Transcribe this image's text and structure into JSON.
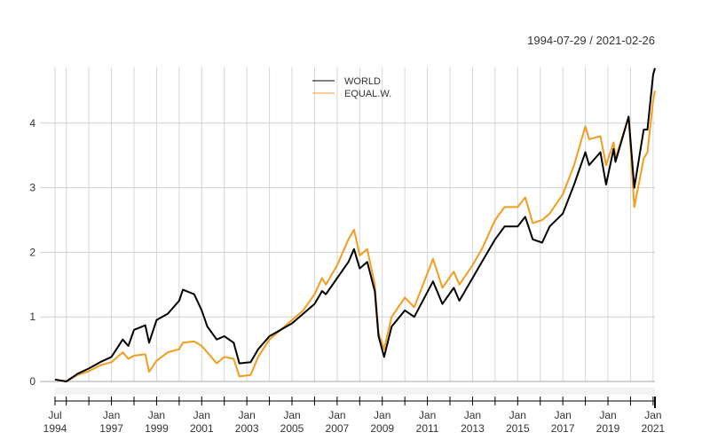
{
  "chart_data": {
    "type": "line",
    "title": "",
    "date_range_label": "1994-07-29 / 2021-02-26",
    "xlabel": "",
    "ylabel": "",
    "ylim": [
      0,
      4.87
    ],
    "yticks": [
      0,
      1,
      2,
      3,
      4
    ],
    "grid": true,
    "legend_placement": "top-center",
    "x_tick_labels": [
      [
        "Jul",
        "1994"
      ],
      [
        "Jan",
        "1997"
      ],
      [
        "Jan",
        "1999"
      ],
      [
        "Jan",
        "2001"
      ],
      [
        "Jan",
        "2003"
      ],
      [
        "Jan",
        "2005"
      ],
      [
        "Jan",
        "2007"
      ],
      [
        "Jan",
        "2009"
      ],
      [
        "Jan",
        "2011"
      ],
      [
        "Jan",
        "2013"
      ],
      [
        "Jan",
        "2015"
      ],
      [
        "Jan",
        "2017"
      ],
      [
        "Jan",
        "2019"
      ],
      [
        "Jan",
        "2021"
      ]
    ],
    "x": [
      "1994-07",
      "1995-01",
      "1995-07",
      "1996-01",
      "1996-07",
      "1997-01",
      "1997-07",
      "1997-10",
      "1998-01",
      "1998-07",
      "1998-09",
      "1999-01",
      "1999-07",
      "2000-01",
      "2000-03",
      "2000-09",
      "2001-01",
      "2001-04",
      "2001-09",
      "2002-01",
      "2002-06",
      "2002-09",
      "2003-03",
      "2003-07",
      "2004-01",
      "2004-07",
      "2005-01",
      "2005-07",
      "2006-01",
      "2006-05",
      "2006-07",
      "2007-01",
      "2007-07",
      "2007-10",
      "2008-01",
      "2008-05",
      "2008-09",
      "2008-11",
      "2009-02",
      "2009-06",
      "2010-01",
      "2010-06",
      "2011-04",
      "2011-09",
      "2012-03",
      "2012-06",
      "2013-01",
      "2013-06",
      "2014-01",
      "2014-06",
      "2015-01",
      "2015-05",
      "2015-09",
      "2016-02",
      "2016-06",
      "2017-01",
      "2017-07",
      "2018-01",
      "2018-03",
      "2018-09",
      "2018-12",
      "2019-04",
      "2019-05",
      "2019-12",
      "2020-03",
      "2020-08",
      "2020-10",
      "2021-01",
      "2021-02"
    ],
    "series": [
      {
        "name": "WORLD",
        "color": "#000000",
        "values": [
          0.03,
          0.0,
          0.12,
          0.2,
          0.3,
          0.38,
          0.65,
          0.55,
          0.8,
          0.87,
          0.6,
          0.95,
          1.05,
          1.25,
          1.42,
          1.35,
          1.1,
          0.85,
          0.65,
          0.7,
          0.6,
          0.28,
          0.3,
          0.5,
          0.7,
          0.8,
          0.9,
          1.05,
          1.2,
          1.4,
          1.35,
          1.6,
          1.85,
          2.05,
          1.75,
          1.85,
          1.4,
          0.7,
          0.38,
          0.85,
          1.1,
          1.0,
          1.55,
          1.2,
          1.45,
          1.25,
          1.6,
          1.85,
          2.2,
          2.4,
          2.4,
          2.55,
          2.2,
          2.15,
          2.4,
          2.6,
          3.05,
          3.55,
          3.35,
          3.55,
          3.05,
          3.6,
          3.4,
          4.1,
          3.0,
          3.9,
          3.9,
          4.75,
          4.85
        ]
      },
      {
        "name": "EQUAL.W.",
        "color": "#f39c1e",
        "values": [
          0.03,
          0.0,
          0.1,
          0.16,
          0.25,
          0.3,
          0.45,
          0.35,
          0.4,
          0.42,
          0.15,
          0.32,
          0.45,
          0.5,
          0.6,
          0.62,
          0.55,
          0.45,
          0.28,
          0.38,
          0.35,
          0.08,
          0.1,
          0.38,
          0.65,
          0.8,
          0.95,
          1.1,
          1.35,
          1.6,
          1.5,
          1.8,
          2.2,
          2.35,
          1.95,
          2.05,
          1.5,
          0.75,
          0.5,
          1.0,
          1.3,
          1.15,
          1.9,
          1.45,
          1.7,
          1.5,
          1.8,
          2.05,
          2.5,
          2.7,
          2.7,
          2.85,
          2.45,
          2.5,
          2.6,
          2.9,
          3.35,
          3.95,
          3.75,
          3.8,
          3.35,
          3.7,
          3.45,
          4.1,
          2.7,
          3.45,
          3.55,
          4.35,
          4.5
        ]
      }
    ]
  }
}
